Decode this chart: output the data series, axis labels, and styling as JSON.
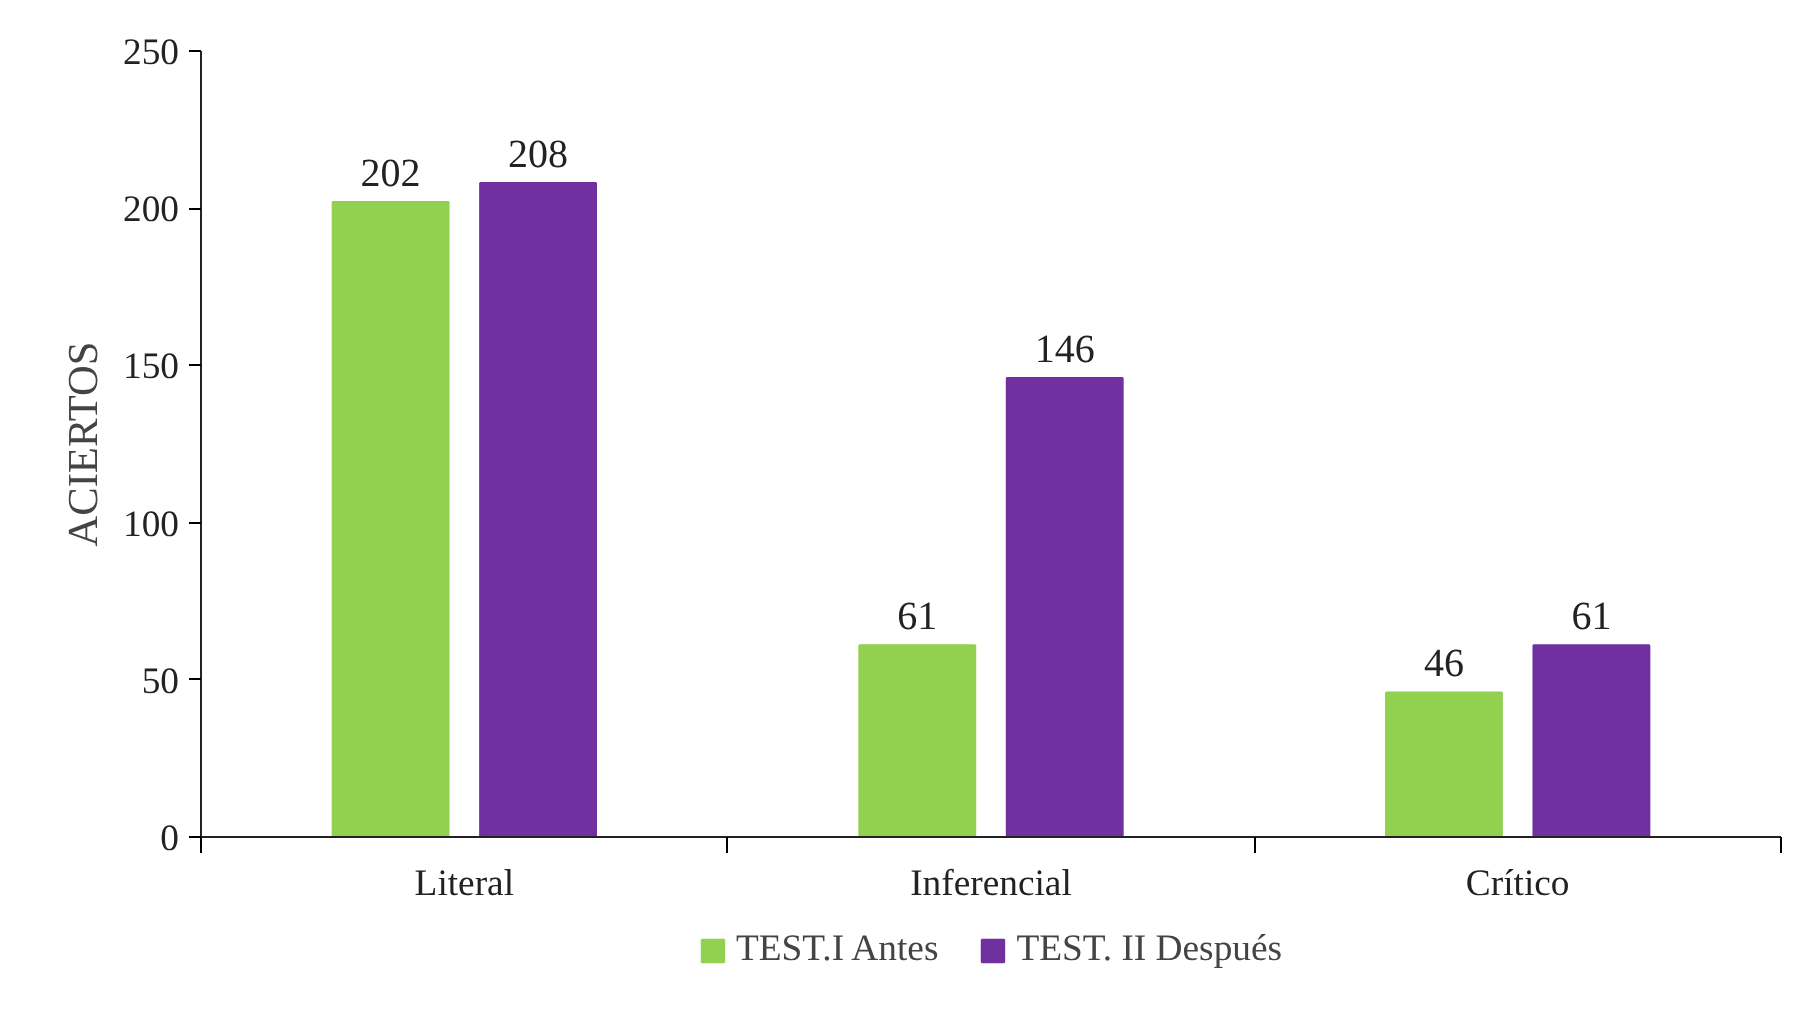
{
  "chart_data": {
    "type": "bar",
    "ylabel": "ACIERTOS",
    "categories": [
      "Literal",
      "Inferencial",
      "Crítico"
    ],
    "series": [
      {
        "name": "TEST.I Antes",
        "color": "#92d050",
        "values": [
          202,
          61,
          46
        ]
      },
      {
        "name": "TEST. II Después",
        "color": "#7030a0",
        "values": [
          208,
          146,
          61
        ]
      }
    ],
    "ylim": [
      0,
      250
    ],
    "yticks": [
      0,
      50,
      100,
      150,
      200,
      250
    ],
    "grid": false,
    "legend": "bottom",
    "data_labels": true
  }
}
